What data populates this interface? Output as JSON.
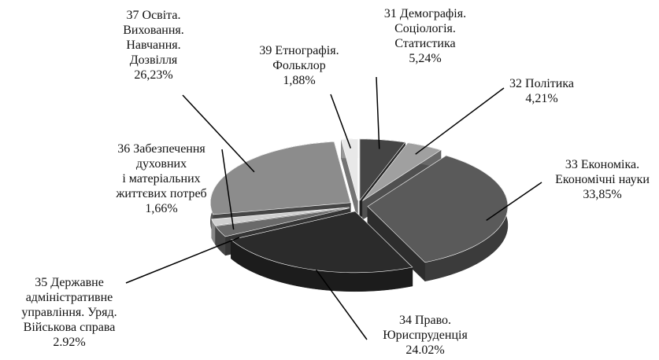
{
  "chart_data": {
    "type": "pie",
    "categories": [
      "31 Демографія.\nСоціологія.\nСтатистика",
      "32 Політика",
      "33 Економіка.\nЕкономічні науки",
      "34 Право.\nЮриспруденція",
      "35 Державне\nадміністративне\nуправління. Уряд.\nВійськова справа",
      "36 Забезпечення\nдуховних\nі матеріальних\nжиттєвих потреб",
      "37 Освіта.\nВиховання.\nНавчання.\nДозвілля",
      "39 Етнографія.\nФольклор"
    ],
    "values": [
      5.24,
      4.21,
      33.85,
      24.02,
      2.92,
      1.66,
      26.23,
      1.88
    ],
    "value_labels": [
      "5,24%",
      "4,21%",
      "33,85%",
      "24.02%",
      "2.92%",
      "1,66%",
      "26,23%",
      "1,88%"
    ],
    "colors": [
      "#454545",
      "#a0a0a0",
      "#5a5a5a",
      "#2b2b2b",
      "#6a6a6a",
      "#d0d0d0",
      "#8c8c8c",
      "#e8e8e8"
    ]
  }
}
